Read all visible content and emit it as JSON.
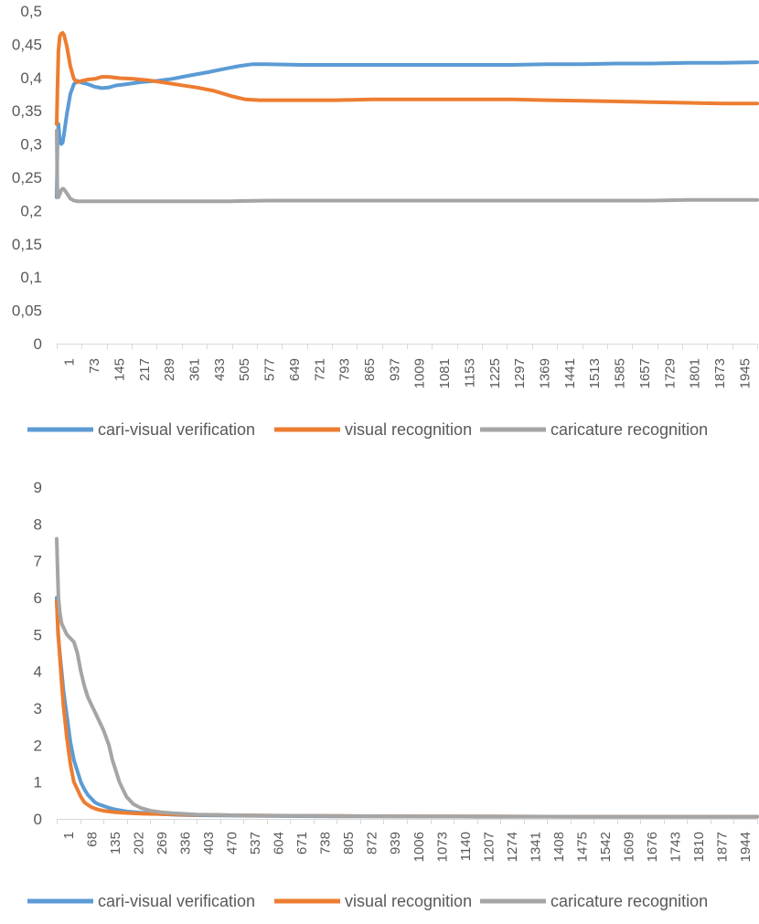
{
  "chart_data": [
    {
      "type": "line",
      "title": "",
      "xlabel": "",
      "ylabel": "",
      "x_range": [
        1,
        2000
      ],
      "ylim": [
        0,
        0.5
      ],
      "y_ticks": [
        "0",
        "0,05",
        "0,1",
        "0,15",
        "0,2",
        "0,25",
        "0,3",
        "0,35",
        "0,4",
        "0,45",
        "0,5"
      ],
      "x_ticks": [
        "1",
        "73",
        "145",
        "217",
        "289",
        "361",
        "433",
        "505",
        "577",
        "649",
        "721",
        "793",
        "865",
        "937",
        "1009",
        "1081",
        "1153",
        "1225",
        "1297",
        "1369",
        "1441",
        "1513",
        "1585",
        "1657",
        "1729",
        "1801",
        "1873",
        "1945"
      ],
      "grid": false,
      "legend": "bottom",
      "series": [
        {
          "name": "cari-visual verification",
          "color": "#5B9BD5",
          "x": [
            1,
            3,
            6,
            10,
            14,
            18,
            22,
            30,
            40,
            50,
            60,
            73,
            90,
            110,
            130,
            150,
            170,
            200,
            240,
            289,
            330,
            380,
            433,
            480,
            520,
            560,
            600,
            700,
            800,
            900,
            1000,
            1100,
            1200,
            1300,
            1400,
            1500,
            1600,
            1700,
            1800,
            1900,
            2000
          ],
          "y": [
            0.22,
            0.3,
            0.33,
            0.305,
            0.3,
            0.302,
            0.315,
            0.345,
            0.375,
            0.39,
            0.395,
            0.392,
            0.39,
            0.386,
            0.384,
            0.385,
            0.388,
            0.39,
            0.393,
            0.395,
            0.398,
            0.403,
            0.408,
            0.413,
            0.417,
            0.42,
            0.42,
            0.419,
            0.419,
            0.419,
            0.419,
            0.419,
            0.419,
            0.419,
            0.42,
            0.42,
            0.421,
            0.421,
            0.422,
            0.422,
            0.423
          ]
        },
        {
          "name": "visual recognition",
          "color": "#ED7D31",
          "x": [
            1,
            3,
            6,
            10,
            14,
            18,
            22,
            30,
            40,
            50,
            60,
            73,
            90,
            110,
            130,
            150,
            180,
            220,
            260,
            300,
            350,
            400,
            450,
            500,
            540,
            580,
            650,
            700,
            800,
            900,
            1000,
            1100,
            1200,
            1300,
            1400,
            1500,
            1600,
            1700,
            1800,
            1900,
            2000
          ],
          "y": [
            0.33,
            0.38,
            0.44,
            0.462,
            0.466,
            0.467,
            0.464,
            0.447,
            0.417,
            0.398,
            0.393,
            0.395,
            0.397,
            0.398,
            0.401,
            0.401,
            0.399,
            0.398,
            0.396,
            0.393,
            0.389,
            0.385,
            0.38,
            0.372,
            0.367,
            0.366,
            0.366,
            0.366,
            0.366,
            0.367,
            0.367,
            0.367,
            0.367,
            0.367,
            0.366,
            0.365,
            0.364,
            0.363,
            0.362,
            0.361,
            0.361
          ]
        },
        {
          "name": "caricature recognition",
          "color": "#A5A5A5",
          "x": [
            1,
            3,
            6,
            10,
            14,
            18,
            22,
            30,
            40,
            50,
            60,
            73,
            100,
            150,
            200,
            300,
            400,
            500,
            600,
            700,
            800,
            900,
            1000,
            1100,
            1200,
            1300,
            1400,
            1500,
            1600,
            1700,
            1800,
            1900,
            2000
          ],
          "y": [
            0.32,
            0.22,
            0.22,
            0.225,
            0.231,
            0.233,
            0.232,
            0.226,
            0.218,
            0.215,
            0.214,
            0.214,
            0.214,
            0.214,
            0.214,
            0.214,
            0.214,
            0.214,
            0.215,
            0.215,
            0.215,
            0.215,
            0.215,
            0.215,
            0.215,
            0.215,
            0.215,
            0.215,
            0.215,
            0.215,
            0.216,
            0.216,
            0.216
          ]
        }
      ]
    },
    {
      "type": "line",
      "title": "",
      "xlabel": "",
      "ylabel": "",
      "x_range": [
        1,
        2000
      ],
      "ylim": [
        0,
        9
      ],
      "y_ticks": [
        "0",
        "1",
        "2",
        "3",
        "4",
        "5",
        "6",
        "7",
        "8",
        "9"
      ],
      "x_ticks": [
        "1",
        "68",
        "135",
        "202",
        "269",
        "336",
        "403",
        "470",
        "537",
        "604",
        "671",
        "738",
        "805",
        "872",
        "939",
        "1006",
        "1073",
        "1140",
        "1207",
        "1274",
        "1341",
        "1408",
        "1475",
        "1542",
        "1609",
        "1676",
        "1743",
        "1810",
        "1877",
        "1944"
      ],
      "grid": false,
      "legend": "bottom",
      "series": [
        {
          "name": "cari-visual verification",
          "color": "#5B9BD5",
          "x": [
            1,
            5,
            10,
            15,
            20,
            30,
            40,
            50,
            60,
            70,
            80,
            90,
            100,
            110,
            120,
            135,
            150,
            170,
            200,
            250,
            300,
            350,
            400,
            500,
            600,
            800,
            1000,
            1200,
            1500,
            1800,
            2000
          ],
          "y": [
            6.0,
            5.0,
            4.5,
            4.0,
            3.5,
            2.8,
            2.1,
            1.6,
            1.3,
            1.0,
            0.8,
            0.65,
            0.55,
            0.45,
            0.4,
            0.35,
            0.3,
            0.25,
            0.2,
            0.16,
            0.13,
            0.11,
            0.1,
            0.09,
            0.08,
            0.07,
            0.07,
            0.06,
            0.06,
            0.06,
            0.06
          ]
        },
        {
          "name": "visual recognition",
          "color": "#ED7D31",
          "x": [
            1,
            5,
            10,
            15,
            20,
            30,
            40,
            50,
            60,
            70,
            80,
            90,
            100,
            110,
            120,
            135,
            150,
            170,
            200,
            250,
            300,
            350,
            400,
            450,
            500,
            600,
            800,
            1000,
            1200,
            1500,
            1800,
            2000
          ],
          "y": [
            5.9,
            5.1,
            4.4,
            3.7,
            3.1,
            2.2,
            1.5,
            1.0,
            0.8,
            0.6,
            0.45,
            0.38,
            0.32,
            0.28,
            0.25,
            0.22,
            0.2,
            0.18,
            0.16,
            0.14,
            0.13,
            0.12,
            0.11,
            0.11,
            0.1,
            0.09,
            0.08,
            0.07,
            0.07,
            0.06,
            0.06,
            0.06
          ]
        },
        {
          "name": "caricature recognition",
          "color": "#A5A5A5",
          "x": [
            1,
            3,
            6,
            10,
            15,
            20,
            30,
            40,
            50,
            60,
            70,
            80,
            90,
            100,
            110,
            120,
            135,
            150,
            160,
            170,
            180,
            190,
            200,
            220,
            240,
            269,
            300,
            336,
            400,
            500,
            600,
            800,
            1000,
            1200,
            1500,
            1800,
            2000
          ],
          "y": [
            7.6,
            6.9,
            6.0,
            5.6,
            5.3,
            5.2,
            5.0,
            4.9,
            4.8,
            4.5,
            4.0,
            3.6,
            3.3,
            3.1,
            2.9,
            2.7,
            2.4,
            2.0,
            1.6,
            1.3,
            1.0,
            0.8,
            0.6,
            0.4,
            0.3,
            0.22,
            0.18,
            0.15,
            0.12,
            0.1,
            0.09,
            0.08,
            0.07,
            0.07,
            0.06,
            0.06,
            0.06
          ]
        }
      ]
    }
  ]
}
